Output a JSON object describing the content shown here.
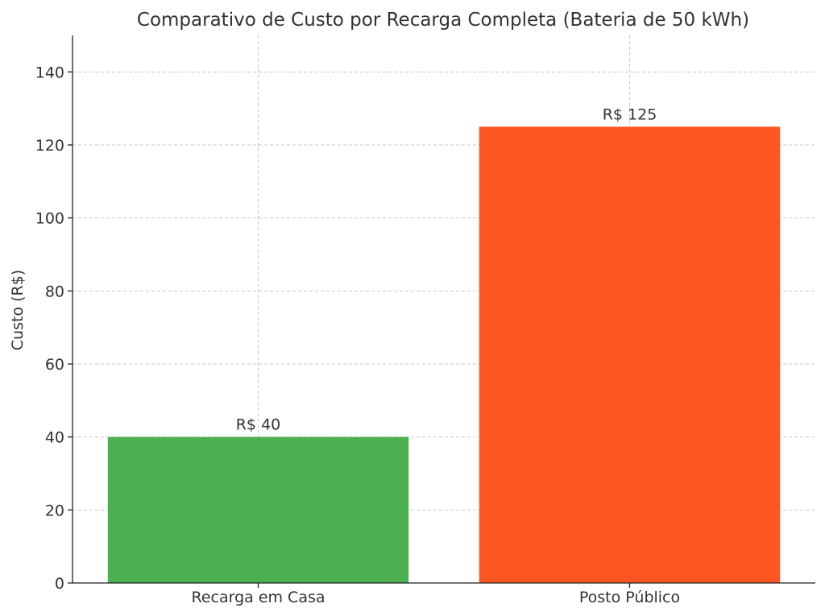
{
  "chart_data": {
    "type": "bar",
    "title": "Comparativo de Custo por Recarga Completa (Bateria de 50 kWh)",
    "xlabel": "",
    "ylabel": "Custo (R$)",
    "categories": [
      "Recarga em Casa",
      "Posto Público"
    ],
    "values": [
      40,
      125
    ],
    "data_labels": [
      "R$ 40",
      "R$ 125"
    ],
    "colors": [
      "#4CAF50",
      "#FF5722"
    ],
    "ylim": [
      0,
      150
    ],
    "yticks": [
      0,
      20,
      40,
      60,
      80,
      100,
      120,
      140
    ],
    "grid": true
  }
}
